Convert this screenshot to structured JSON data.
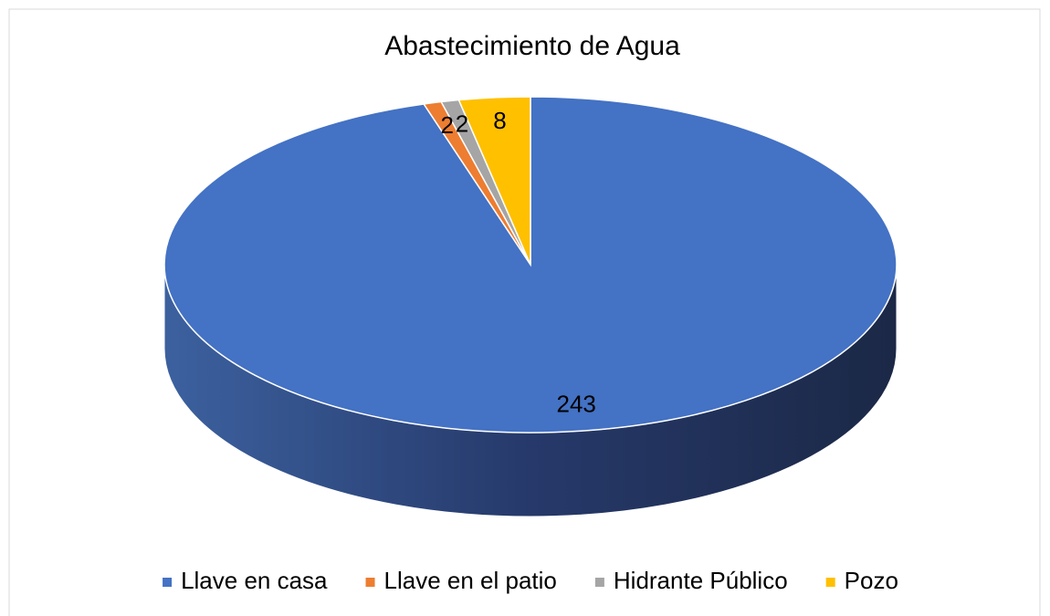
{
  "chart_data": {
    "type": "pie",
    "title": "Abastecimiento de Agua",
    "categories": [
      "Llave en casa",
      "Llave en el patio",
      "Hidrante Público",
      "Pozo"
    ],
    "values": [
      243,
      2,
      2,
      8
    ],
    "colors": [
      "#4472c4",
      "#ed7d31",
      "#a5a5a5",
      "#ffc000"
    ],
    "legend": "bottom"
  }
}
